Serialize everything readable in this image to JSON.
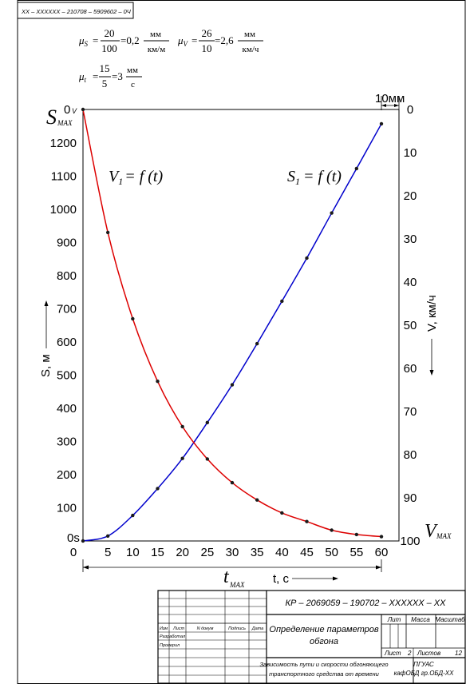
{
  "corner_code": "ХХ – ХХХХХХ – 210708 – 5909602 – 0Ч",
  "scales": {
    "mu_s": {
      "symbol": "μ",
      "sub": "S",
      "num": "20",
      "den": "100",
      "result": "=0,2",
      "unit_num": "мм",
      "unit_den": "км/м"
    },
    "mu_v": {
      "symbol": "μ",
      "sub": "V",
      "num": "26",
      "den": "10",
      "result": "=2,6",
      "unit_num": "мм",
      "unit_den": "км/ч"
    },
    "mu_t": {
      "symbol": "μ",
      "sub": "t",
      "num": "15",
      "den": "5",
      "result": "=3",
      "unit_num": "мм",
      "unit_den": "с"
    }
  },
  "labels": {
    "s_max": "S",
    "s_max_sub": "MAX",
    "v_max": "V",
    "v_max_sub": "MAX",
    "t_max": "t",
    "t_max_sub": "MAX",
    "zero_v": "0",
    "zero_v_sub": "V",
    "zero_s": "0s",
    "ten_mm": "10мм",
    "eq_v": "V",
    "eq_v_sub": "1",
    "eq_v_rhs": "= f (t)",
    "eq_s": "S",
    "eq_s_sub": "1",
    "eq_s_rhs": "= f (t)"
  },
  "chart_data": {
    "type": "line",
    "x": [
      0,
      5,
      10,
      15,
      20,
      25,
      30,
      35,
      40,
      45,
      50,
      55,
      60
    ],
    "xlabel": "t, с",
    "ylabel_left": "S, м",
    "ylabel_right": "V, км/ч",
    "xlim": [
      0,
      60
    ],
    "ylim_left": [
      0,
      1300
    ],
    "ylim_right": [
      0,
      100
    ],
    "right_axis_inverted": true,
    "x_ticks": [
      "0",
      "5",
      "10",
      "15",
      "20",
      "25",
      "30",
      "35",
      "40",
      "45",
      "50",
      "55",
      "60"
    ],
    "left_ticks": [
      "100",
      "200",
      "300",
      "400",
      "500",
      "600",
      "700",
      "800",
      "900",
      "1000",
      "1100",
      "1200"
    ],
    "right_ticks": [
      "0",
      "10",
      "20",
      "30",
      "40",
      "50",
      "60",
      "70",
      "80",
      "90",
      "100"
    ],
    "series": [
      {
        "name": "S1 = f(t)",
        "axis": "left",
        "color": "#0000cc",
        "values": [
          0,
          15,
          77,
          158,
          249,
          357,
          471,
          595,
          723,
          853,
          989,
          1123,
          1258
        ]
      },
      {
        "name": "V1 = f(t)",
        "axis": "right",
        "color": "#dd0000",
        "values": [
          0,
          28.5,
          48.5,
          63,
          73.5,
          81,
          86.5,
          90.5,
          93.5,
          95.5,
          97.5,
          98.5,
          99
        ]
      }
    ],
    "grid": false
  },
  "stamp": {
    "doc_code": "КР – 2069059 – 190702 – ХХХХХХ – ХХ",
    "title_line1": "Определение параметров",
    "title_line2": "обгона",
    "subtitle_line1": "Зависимость пути и скорости обгоняющего",
    "subtitle_line2": "транспортного средства от времени",
    "lit": "Лит",
    "massa": "Масса",
    "masshtab": "Масштаб",
    "list": "Лист",
    "list_no": "2",
    "listov": "Листов",
    "listov_no": "12",
    "org_line1": "ПГУАС",
    "org_line2": "кафОБД гр.ОБД-ХХ",
    "izm": "Изм",
    "list_col": "Лист",
    "n_dokum": "N докум",
    "podpis": "Подпись",
    "data": "Дата",
    "razrabotal": "Разработал",
    "proveril": "Проверил"
  }
}
